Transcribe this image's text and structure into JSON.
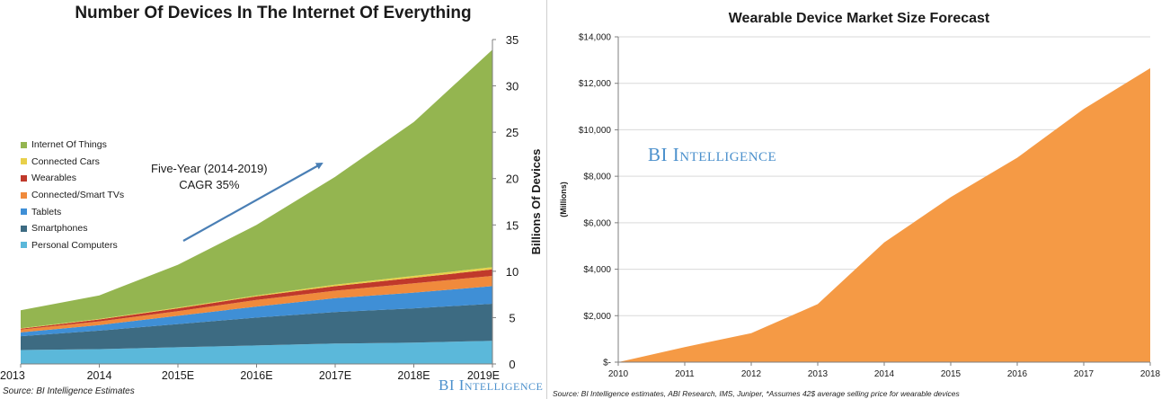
{
  "left": {
    "title": "Number Of Devices In The Internet Of Everything",
    "source": "Source: BI Intelligence Estimates",
    "brand": "BI Intelligence",
    "annotation_line1": "Five-Year (2014-2019)",
    "annotation_line2": "CAGR 35%"
  },
  "right": {
    "title": "Wearable Device Market Size Forecast",
    "source": "Source: BI Intelligence estimates, ABI Research, IMS, Juniper, *Assumes 42$ average selling price for wearable devices",
    "brand": "BI Intelligence"
  },
  "chart_data": [
    {
      "type": "area",
      "stacked": true,
      "title": "Number Of Devices In The Internet Of Everything",
      "ylabel": "Billions Of Devices",
      "ylim": [
        0,
        35
      ],
      "yticks": [
        0,
        5,
        10,
        15,
        20,
        25,
        30,
        35
      ],
      "ytick_side": "right",
      "categories": [
        "2013",
        "2014",
        "2015E",
        "2016E",
        "2017E",
        "2018E",
        "2019E"
      ],
      "legend_position": "left",
      "series": [
        {
          "name": "Personal Computers",
          "color": "#5bb8da",
          "values": [
            1.5,
            1.6,
            1.8,
            2.0,
            2.2,
            2.3,
            2.5
          ]
        },
        {
          "name": "Smartphones",
          "color": "#3d6b82",
          "values": [
            1.5,
            2.0,
            2.5,
            3.0,
            3.4,
            3.7,
            4.0
          ]
        },
        {
          "name": "Tablets",
          "color": "#3f8fd6",
          "values": [
            0.4,
            0.6,
            0.9,
            1.2,
            1.5,
            1.7,
            1.9
          ]
        },
        {
          "name": "Connected/Smart TVs",
          "color": "#f08a3c",
          "values": [
            0.3,
            0.4,
            0.5,
            0.7,
            0.8,
            1.0,
            1.1
          ]
        },
        {
          "name": "Wearables",
          "color": "#c0392b",
          "values": [
            0.1,
            0.2,
            0.3,
            0.4,
            0.5,
            0.6,
            0.7
          ]
        },
        {
          "name": "Connected Cars",
          "color": "#e8d04a",
          "values": [
            0.05,
            0.06,
            0.08,
            0.1,
            0.15,
            0.2,
            0.25
          ]
        },
        {
          "name": "Internet Of Things",
          "color": "#94b550",
          "values": [
            1.95,
            2.54,
            4.62,
            7.6,
            11.65,
            16.6,
            23.45
          ]
        }
      ]
    },
    {
      "type": "area",
      "title": "Wearable Device Market Size Forecast",
      "ylabel": "(Millions)",
      "ylim": [
        0,
        14000
      ],
      "ytick_labels": [
        "$-",
        "$2,000",
        "$4,000",
        "$6,000",
        "$8,000",
        "$10,000",
        "$12,000",
        "$14,000"
      ],
      "yticks": [
        0,
        2000,
        4000,
        6000,
        8000,
        10000,
        12000,
        14000
      ],
      "grid": true,
      "categories": [
        "2010",
        "2011",
        "2012",
        "2013",
        "2014",
        "2015",
        "2016",
        "2017",
        "2018"
      ],
      "series": [
        {
          "color": "#f59a45",
          "values": [
            0,
            650,
            1250,
            2500,
            5150,
            7100,
            8800,
            10900,
            12650
          ]
        }
      ]
    }
  ]
}
